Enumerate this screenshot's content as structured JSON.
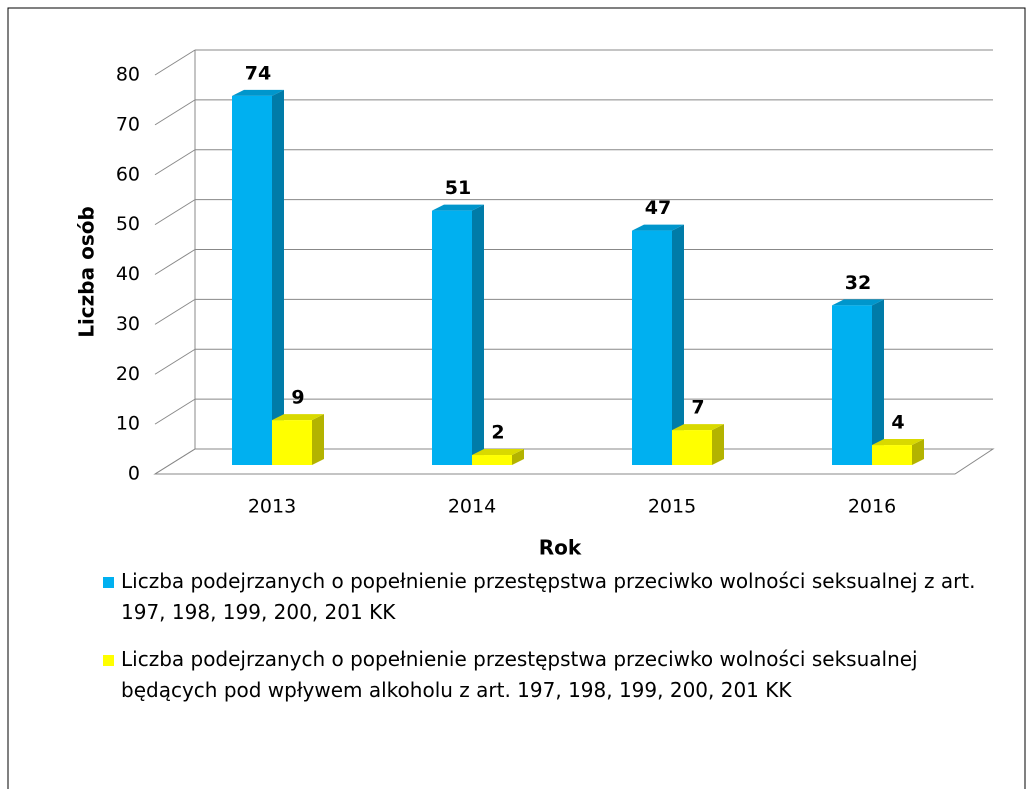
{
  "chart_data": {
    "type": "bar3d",
    "xlabel": "Rok",
    "ylabel": "Liczba osób",
    "categories": [
      "2013",
      "2014",
      "2015",
      "2016"
    ],
    "series": [
      {
        "name": "Liczba podejrzanych o popełnienie przestępstwa przeciwko wolności seksualnej z art. 197, 198, 199, 200, 201 KK",
        "color": "#00b0f0",
        "values": [
          74,
          51,
          47,
          32
        ]
      },
      {
        "name": "Liczba podejrzanych o popełnienie przestępstwa przeciwko wolności seksualnej będących pod wpływem alkoholu z art. 197, 198, 199, 200, 201 KK",
        "color": "#ffff00",
        "values": [
          9,
          2,
          7,
          4
        ]
      }
    ],
    "ylim": [
      0,
      80
    ],
    "yticks": [
      0,
      10,
      20,
      30,
      40,
      50,
      60,
      70,
      80
    ],
    "grid": true,
    "legend": "bottom"
  }
}
